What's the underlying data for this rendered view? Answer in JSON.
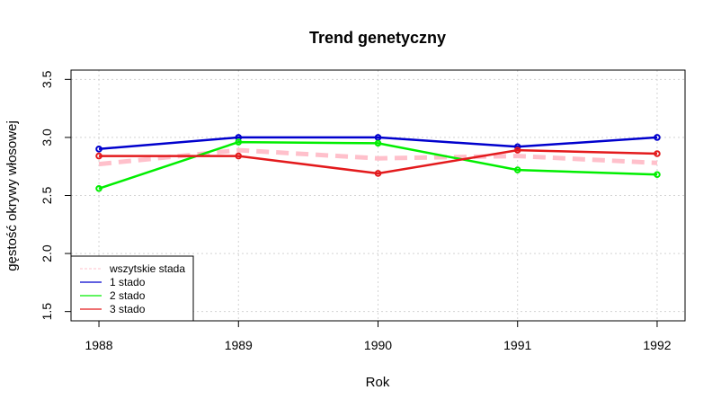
{
  "chart_data": {
    "type": "line",
    "title": "Trend genetyczny",
    "xlabel": "Rok",
    "ylabel": "gęstość okrywy włosowej",
    "x": [
      1988,
      1989,
      1990,
      1991,
      1992
    ],
    "x_ticks": [
      "1988",
      "1989",
      "1990",
      "1991",
      "1992"
    ],
    "y_ticks": [
      "1.5",
      "2.0",
      "2.5",
      "3.0",
      "3.5"
    ],
    "xlim": [
      1987.8,
      1992.2
    ],
    "ylim": [
      1.42,
      3.58
    ],
    "grid": true,
    "legend_position": "bottom-left",
    "series": [
      {
        "name": "wszytskie stada",
        "color": "#ffc0cb",
        "style": "dashed",
        "markers": false,
        "values": [
          2.77,
          2.89,
          2.82,
          2.84,
          2.78
        ]
      },
      {
        "name": "1 stado",
        "color": "#0000cd",
        "style": "solid",
        "markers": true,
        "values": [
          2.9,
          3.0,
          3.0,
          2.92,
          3.0
        ]
      },
      {
        "name": "2 stado",
        "color": "#00ee00",
        "style": "solid",
        "markers": true,
        "values": [
          2.56,
          2.96,
          2.95,
          2.72,
          2.68
        ]
      },
      {
        "name": "3 stado",
        "color": "#e31a1c",
        "style": "solid",
        "markers": true,
        "values": [
          2.84,
          2.84,
          2.69,
          2.89,
          2.86
        ]
      }
    ]
  }
}
